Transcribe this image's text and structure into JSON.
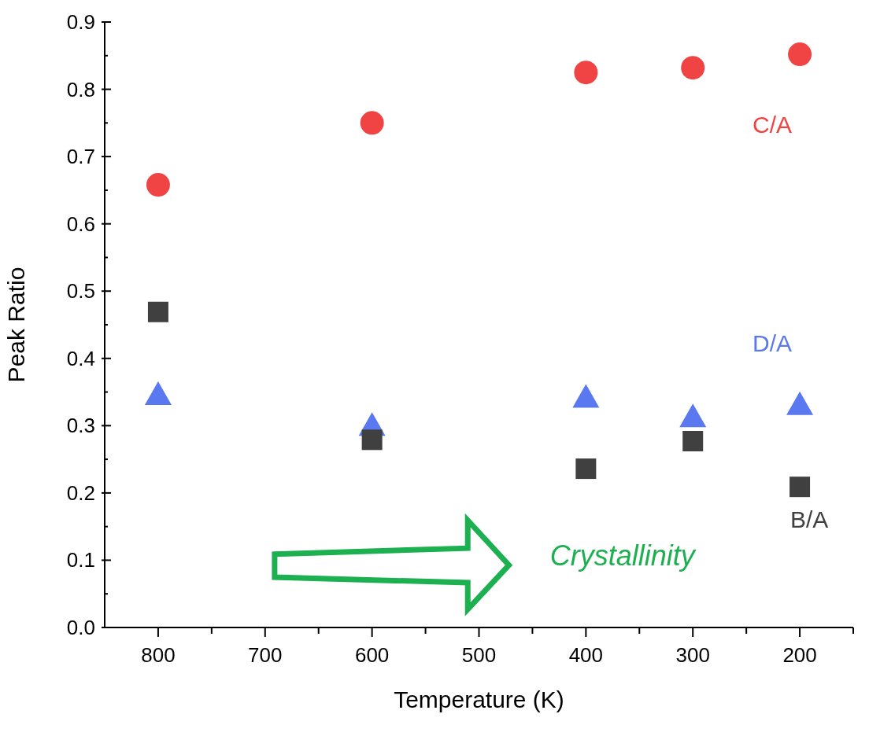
{
  "chart_data": {
    "type": "scatter",
    "xlabel": "Temperature (K)",
    "ylabel": "Peak Ratio",
    "x": [
      800,
      600,
      400,
      300,
      200
    ],
    "series": [
      {
        "name": "C/A",
        "color": "#f04444",
        "marker": "circle",
        "values": [
          0.658,
          0.75,
          0.825,
          0.832,
          0.852
        ]
      },
      {
        "name": "D/A",
        "color": "#5a78f0",
        "marker": "triangle",
        "values": [
          0.346,
          0.3,
          0.342,
          0.313,
          0.331
        ]
      },
      {
        "name": "B/A",
        "color": "#404040",
        "marker": "square",
        "values": [
          0.469,
          0.279,
          0.236,
          0.277,
          0.209
        ]
      }
    ],
    "xlim": [
      850,
      150
    ],
    "xticks": [
      800,
      {
        "value": 750,
        "label": null
      },
      700,
      {
        "value": 650,
        "label": null
      },
      600,
      {
        "value": 550,
        "label": null
      },
      500,
      {
        "value": 450,
        "label": null
      },
      400,
      {
        "value": 350,
        "label": null
      },
      300,
      {
        "value": 250,
        "label": null
      },
      200,
      {
        "value": 150,
        "label": null
      }
    ],
    "ylim": [
      0,
      0.9
    ],
    "yticks": [
      {
        "value": 0,
        "label": "0.0"
      },
      {
        "value": 0.05,
        "label": null
      },
      0.1,
      {
        "value": 0.15,
        "label": null
      },
      0.2,
      {
        "value": 0.25,
        "label": null
      },
      0.3,
      {
        "value": 0.35,
        "label": null
      },
      0.4,
      {
        "value": 0.45,
        "label": null
      },
      0.5,
      {
        "value": 0.55,
        "label": null
      },
      0.6,
      {
        "value": 0.65,
        "label": null
      },
      0.7,
      {
        "value": 0.75,
        "label": null
      },
      0.8,
      {
        "value": 0.85,
        "label": null
      },
      0.9
    ],
    "grid": false,
    "annotations": [
      "Crystallinity"
    ]
  }
}
